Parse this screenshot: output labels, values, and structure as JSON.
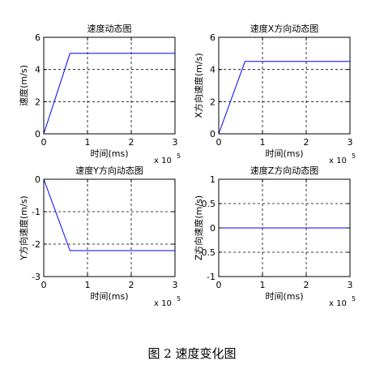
{
  "caption": "图 2 速度变化图",
  "line_color": "#0000ff",
  "chart_data": [
    {
      "type": "line",
      "title": "速度动态图",
      "xlabel": "时间(ms)",
      "ylabel": "速度(m/s)",
      "x_multiplier_base": "x 10",
      "x_multiplier_exp": "5",
      "xlim": [
        0,
        3
      ],
      "ylim": [
        0,
        6
      ],
      "xticks": [
        0,
        1,
        2,
        3
      ],
      "yticks": [
        0,
        2,
        4,
        6
      ],
      "grid": true,
      "x": [
        0,
        0.6,
        3
      ],
      "y": [
        0,
        5,
        5
      ]
    },
    {
      "type": "line",
      "title": "速度X方向动态图",
      "xlabel": "时间(ms)",
      "ylabel": "X方向速度(m/s)",
      "x_multiplier_base": "x 10",
      "x_multiplier_exp": "5",
      "xlim": [
        0,
        3
      ],
      "ylim": [
        0,
        6
      ],
      "xticks": [
        0,
        1,
        2,
        3
      ],
      "yticks": [
        0,
        2,
        4,
        6
      ],
      "grid": true,
      "x": [
        0,
        0.6,
        3
      ],
      "y": [
        0,
        4.5,
        4.5
      ]
    },
    {
      "type": "line",
      "title": "速度Y方向动态图",
      "xlabel": "时间(ms)",
      "ylabel": "Y方向速度(m/s)",
      "x_multiplier_base": "x 10",
      "x_multiplier_exp": "5",
      "xlim": [
        0,
        3
      ],
      "ylim": [
        -3,
        0
      ],
      "xticks": [
        0,
        1,
        2,
        3
      ],
      "yticks": [
        -3,
        -2,
        -1,
        0
      ],
      "grid": true,
      "x": [
        0,
        0.6,
        3
      ],
      "y": [
        0,
        -2.2,
        -2.2
      ]
    },
    {
      "type": "line",
      "title": "速度Z方向动态图",
      "xlabel": "时间(ms)",
      "ylabel": "Z方向速度(m/s)",
      "x_multiplier_base": "x 10",
      "x_multiplier_exp": "5",
      "xlim": [
        0,
        3
      ],
      "ylim": [
        -1,
        1
      ],
      "xticks": [
        0,
        1,
        2,
        3
      ],
      "yticks": [
        -1,
        -0.5,
        0,
        0.5,
        1
      ],
      "grid": true,
      "x": [
        0,
        3
      ],
      "y": [
        0,
        0
      ]
    }
  ]
}
